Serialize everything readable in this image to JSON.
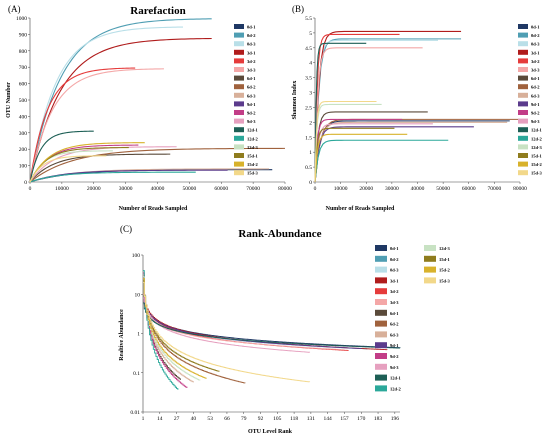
{
  "colors": {
    "0d-1": "#1f3864",
    "0d-2": "#4f9eb3",
    "0d-3": "#b9dfe8",
    "3d-1": "#b01c1c",
    "3d-2": "#e53b3b",
    "3d-3": "#f4a7a7",
    "6d-1": "#5a4a3a",
    "6d-2": "#a0623d",
    "6d-3": "#d8b09a",
    "9d-1": "#5b3b8c",
    "9d-2": "#c23d87",
    "9d-3": "#e6a0bf",
    "12d-1": "#1d5f55",
    "12d-2": "#2ba89a",
    "12d-3": "#c8e2c3",
    "15d-1": "#8f7c1e",
    "15d-2": "#d8b22c",
    "15d-3": "#f2d88a"
  },
  "chart_data": [
    {
      "panel": "(A)",
      "type": "line",
      "title": "Rarefaction",
      "xlabel": "Number of Reads Sampled",
      "ylabel": "OTU Number",
      "xlim": [
        0,
        80000
      ],
      "ylim": [
        0,
        1000
      ],
      "xticks": [
        "0",
        "10000",
        "20000",
        "30000",
        "40000",
        "50000",
        "60000",
        "70000",
        "80000"
      ],
      "yticks": [
        "0",
        "100",
        "200",
        "300",
        "400",
        "500",
        "600",
        "700",
        "800",
        "900",
        "1000"
      ],
      "legend": [
        "0d-1",
        "0d-2",
        "0d-3",
        "3d-1",
        "3d-2",
        "3d-3",
        "6d-1",
        "6d-2",
        "6d-3",
        "9d-1",
        "9d-2",
        "9d-3",
        "12d-1",
        "12d-2",
        "12d-3",
        "15d-1",
        "15d-2",
        "15d-3"
      ],
      "series": [
        {
          "name": "0d-1",
          "xmax": 76000,
          "final": 75
        },
        {
          "name": "0d-2",
          "xmax": 57000,
          "final": 995
        },
        {
          "name": "0d-3",
          "xmax": 48000,
          "final": 945
        },
        {
          "name": "3d-1",
          "xmax": 57000,
          "final": 875
        },
        {
          "name": "3d-2",
          "xmax": 33000,
          "final": 695
        },
        {
          "name": "3d-3",
          "xmax": 42000,
          "final": 690
        },
        {
          "name": "6d-1",
          "xmax": 44000,
          "final": 170
        },
        {
          "name": "6d-2",
          "xmax": 80000,
          "final": 205
        },
        {
          "name": "6d-3",
          "xmax": 75000,
          "final": 80
        },
        {
          "name": "9d-1",
          "xmax": 62000,
          "final": 72
        },
        {
          "name": "9d-2",
          "xmax": 34000,
          "final": 225
        },
        {
          "name": "9d-3",
          "xmax": 46000,
          "final": 215
        },
        {
          "name": "12d-1",
          "xmax": 20000,
          "final": 310
        },
        {
          "name": "12d-2",
          "xmax": 52000,
          "final": 60
        },
        {
          "name": "12d-3",
          "xmax": 26000,
          "final": 190
        },
        {
          "name": "15d-1",
          "xmax": 31000,
          "final": 210
        },
        {
          "name": "15d-2",
          "xmax": 36000,
          "final": 240
        },
        {
          "name": "15d-3",
          "xmax": 24000,
          "final": 160
        }
      ]
    },
    {
      "panel": "(B)",
      "type": "line",
      "title": "",
      "xlabel": "Number of Reads Sampled",
      "ylabel": "Shannon Index",
      "xlim": [
        0,
        80000
      ],
      "ylim": [
        0,
        5.5
      ],
      "xticks": [
        "0",
        "10000",
        "20000",
        "30000",
        "40000",
        "50000",
        "60000",
        "70000",
        "80000"
      ],
      "yticks": [
        "0",
        "0.5",
        "1",
        "1.5",
        "2",
        "2.5",
        "3",
        "3.5",
        "4",
        "4.5",
        "5",
        "5.5"
      ],
      "legend": [
        "0d-1",
        "0d-2",
        "0d-3",
        "3d-1",
        "3d-2",
        "3d-3",
        "6d-1",
        "6d-2",
        "6d-3",
        "9d-1",
        "9d-2",
        "9d-3",
        "12d-1",
        "12d-2",
        "12d-3",
        "15d-1",
        "15d-2",
        "15d-3"
      ],
      "series": [
        {
          "name": "0d-1",
          "xmax": 76000,
          "final": 2.05
        },
        {
          "name": "0d-2",
          "xmax": 57000,
          "final": 4.8
        },
        {
          "name": "0d-3",
          "xmax": 48000,
          "final": 4.75
        },
        {
          "name": "3d-1",
          "xmax": 57000,
          "final": 5.05
        },
        {
          "name": "3d-2",
          "xmax": 33000,
          "final": 4.95
        },
        {
          "name": "3d-3",
          "xmax": 42000,
          "final": 4.5
        },
        {
          "name": "6d-1",
          "xmax": 44000,
          "final": 2.35
        },
        {
          "name": "6d-2",
          "xmax": 80000,
          "final": 2.1
        },
        {
          "name": "6d-3",
          "xmax": 75000,
          "final": 2.0
        },
        {
          "name": "9d-1",
          "xmax": 62000,
          "final": 1.85
        },
        {
          "name": "9d-2",
          "xmax": 34000,
          "final": 2.1
        },
        {
          "name": "9d-3",
          "xmax": 46000,
          "final": 1.95
        },
        {
          "name": "12d-1",
          "xmax": 20000,
          "final": 4.65
        },
        {
          "name": "12d-2",
          "xmax": 52000,
          "final": 1.4
        },
        {
          "name": "12d-3",
          "xmax": 26000,
          "final": 2.6
        },
        {
          "name": "15d-1",
          "xmax": 31000,
          "final": 1.8
        },
        {
          "name": "15d-2",
          "xmax": 36000,
          "final": 1.6
        },
        {
          "name": "15d-3",
          "xmax": 24000,
          "final": 2.7
        }
      ]
    },
    {
      "panel": "(C)",
      "type": "line",
      "title": "Rank-Abundance",
      "xlabel": "OTU Level Rank",
      "ylabel": "Realtive Abundance",
      "scale_y": "log",
      "xlim": [
        1,
        200
      ],
      "ylim": [
        0.01,
        100
      ],
      "xticks": [
        "1",
        "14",
        "27",
        "40",
        "53",
        "66",
        "79",
        "92",
        "105",
        "118",
        "131",
        "144",
        "157",
        "170",
        "183",
        "196"
      ],
      "yticks": [
        "0.01",
        "0.1",
        "1",
        "10",
        "100"
      ],
      "legend": [
        "0d-1",
        "0d-2",
        "0d-3",
        "3d-1",
        "3d-2",
        "3d-3",
        "6d-1",
        "6d-2",
        "6d-3",
        "9d-1",
        "9d-2",
        "9d-3",
        "12d-1",
        "12d-2",
        "12d-3",
        "15d-1",
        "15d-2",
        "15d-3"
      ],
      "series": [
        {
          "name": "0d-1",
          "xmax": 200,
          "a": 8,
          "b": 0.55
        },
        {
          "name": "0d-2",
          "xmax": 175,
          "a": 9,
          "b": 0.6
        },
        {
          "name": "0d-3",
          "xmax": 165,
          "a": 8,
          "b": 0.58
        },
        {
          "name": "3d-1",
          "xmax": 190,
          "a": 10,
          "b": 0.62
        },
        {
          "name": "3d-2",
          "xmax": 160,
          "a": 10,
          "b": 0.65
        },
        {
          "name": "3d-3",
          "xmax": 150,
          "a": 8,
          "b": 0.6
        },
        {
          "name": "6d-1",
          "xmax": 30,
          "a": 30,
          "b": 1.8
        },
        {
          "name": "6d-2",
          "xmax": 80,
          "a": 25,
          "b": 1.4
        },
        {
          "name": "6d-3",
          "xmax": 40,
          "a": 30,
          "b": 1.7
        },
        {
          "name": "9d-1",
          "xmax": 170,
          "a": 9,
          "b": 0.6
        },
        {
          "name": "9d-2",
          "xmax": 35,
          "a": 35,
          "b": 1.9
        },
        {
          "name": "9d-3",
          "xmax": 130,
          "a": 10,
          "b": 0.7
        },
        {
          "name": "12d-1",
          "xmax": 200,
          "a": 6,
          "b": 0.5
        },
        {
          "name": "12d-2",
          "xmax": 28,
          "a": 40,
          "b": 2.1
        },
        {
          "name": "12d-3",
          "xmax": 45,
          "a": 28,
          "b": 1.6
        },
        {
          "name": "15d-1",
          "xmax": 60,
          "a": 22,
          "b": 1.3
        },
        {
          "name": "15d-2",
          "xmax": 50,
          "a": 25,
          "b": 1.5
        },
        {
          "name": "15d-3",
          "xmax": 130,
          "a": 20,
          "b": 1.2
        }
      ]
    }
  ]
}
